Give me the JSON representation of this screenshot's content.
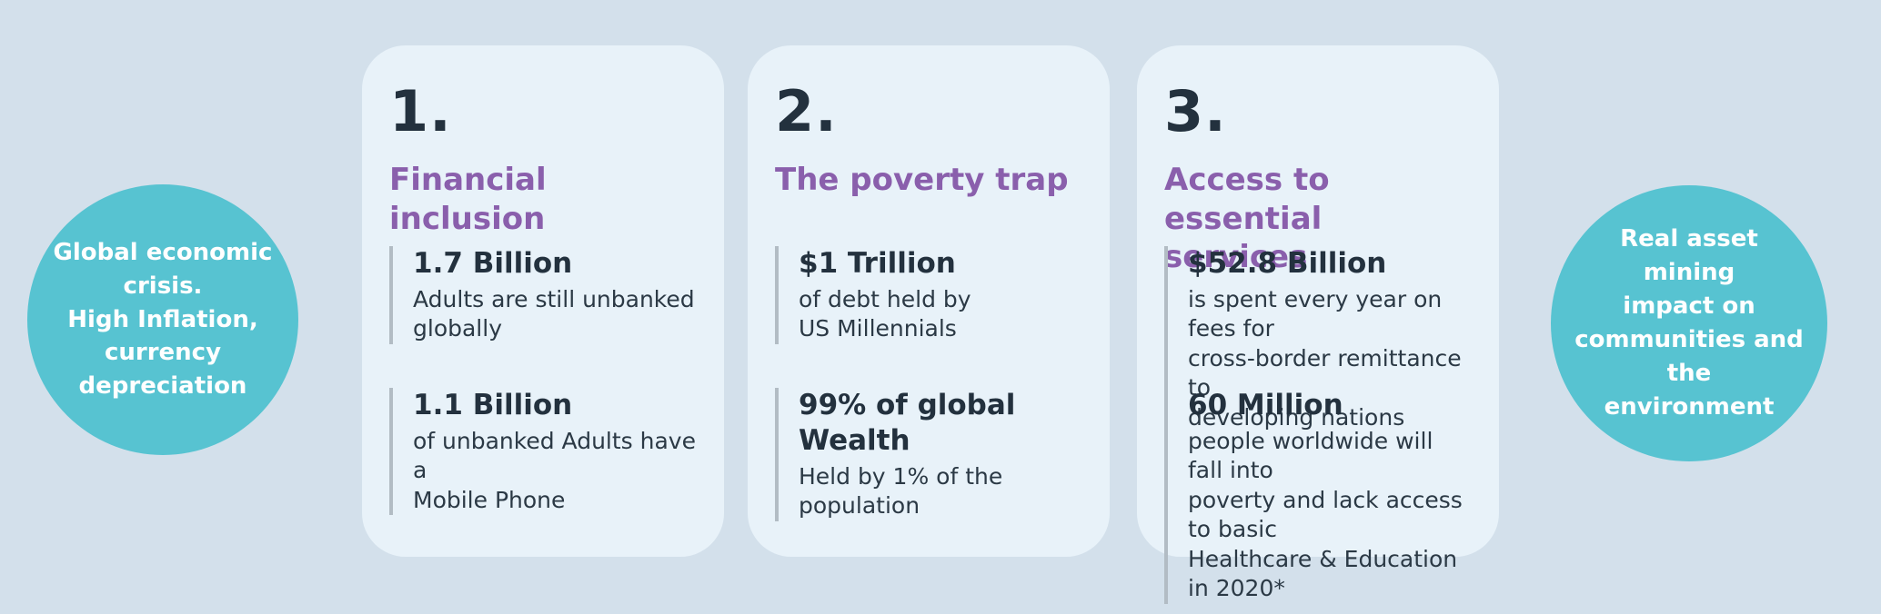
{
  "palette": {
    "page_background": "#d3e0eb",
    "card_background": "#e8f2f9",
    "circle_background": "#57c3d1",
    "circle_text_color": "#ffffff",
    "title_purple": "#8a5fac",
    "dark_text": "#23313e",
    "stat_bar_gray": "#b2bcc4"
  },
  "left_circle": {
    "text": "Global economic\ncrisis.\nHigh Inflation,\ncurrency\ndepreciation"
  },
  "right_circle": {
    "text": "Real asset  mining\nimpact on\ncommunities and the\nenvironment"
  },
  "cards": [
    {
      "number": "1.",
      "title": "Financial inclusion",
      "stats": [
        {
          "value": "1.7 Billion",
          "description": "Adults are still unbanked\nglobally"
        },
        {
          "value": "1.1 Billion",
          "description": "of unbanked Adults have a\nMobile Phone"
        }
      ]
    },
    {
      "number": "2.",
      "title": "The poverty trap",
      "stats": [
        {
          "value": "$1 Trillion",
          "description": "of debt held by\nUS Millennials"
        },
        {
          "value": "99% of global Wealth",
          "description": "Held by 1% of the\npopulation"
        }
      ]
    },
    {
      "number": "3.",
      "title": "Access to essential\nservices",
      "stats": [
        {
          "value": "$52.8 Billion",
          "description": "is spent every year on fees for\ncross-border remittance to\ndeveloping nations"
        },
        {
          "value": "60 Million",
          "description": "people worldwide will fall into\npoverty and lack access to basic\nHealthcare & Education in 2020*"
        }
      ]
    }
  ]
}
